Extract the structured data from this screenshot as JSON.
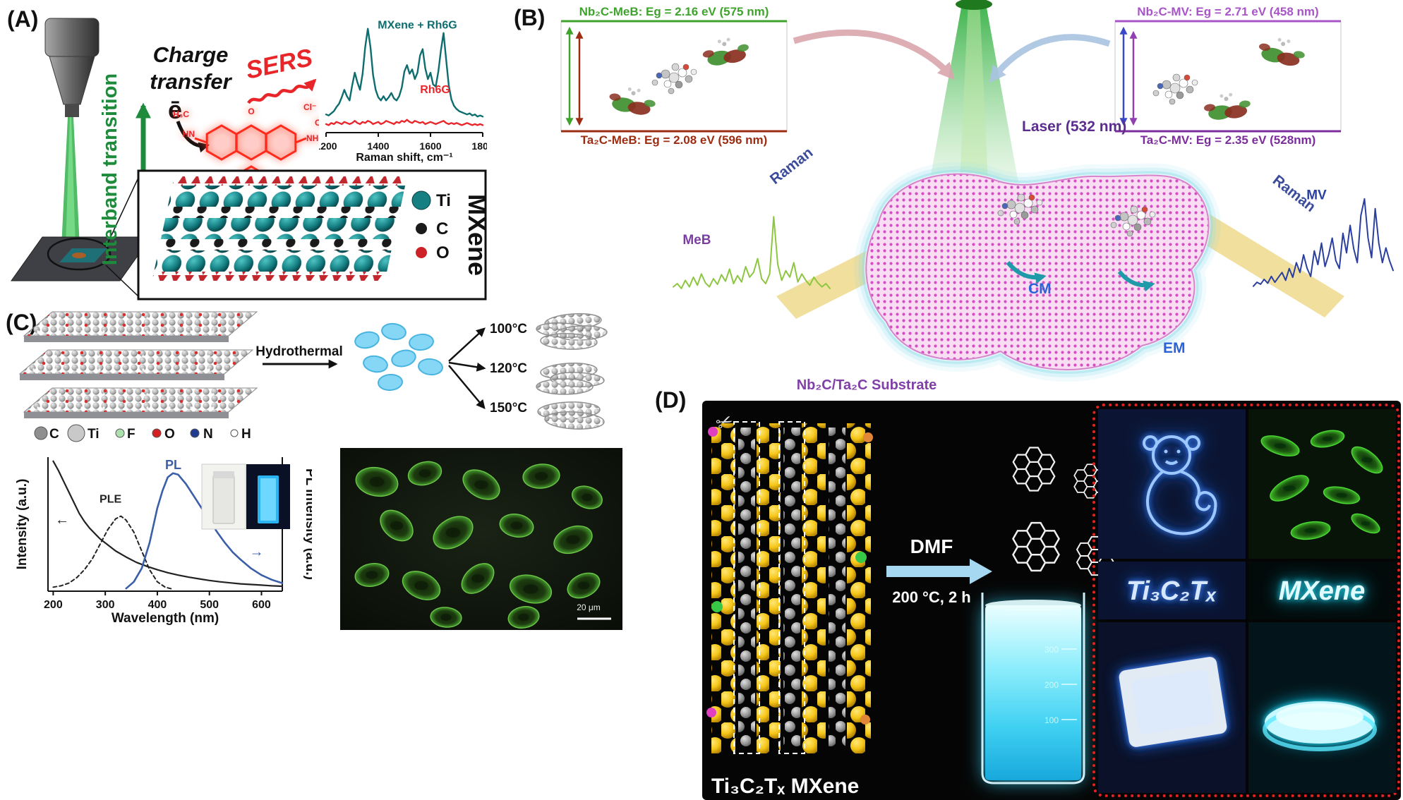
{
  "figure_title": "MXene SERS and photoluminescence multi-panel figure",
  "panels": {
    "a": {
      "label": "(A)",
      "interband": "Interband transition",
      "charge_line1": "Charge",
      "charge_line2": "transfer",
      "electron": "ē",
      "sers": "SERS",
      "molecule_labels": [
        "H₃C",
        "HN",
        "Cl⁻",
        "CH₃",
        "NH",
        "O",
        "CH₃"
      ],
      "lattice_legend": [
        {
          "label": "Ti",
          "color": "#157f82"
        },
        {
          "label": "C",
          "color": "#1a1a1a"
        },
        {
          "label": "O",
          "color": "#cc2127"
        }
      ],
      "mxene_vertical": "MXene"
    },
    "b": {
      "label": "(B)",
      "box_left": {
        "top": "Nb₂C-MeB: Eg = 2.16 eV (575 nm)",
        "top_color": "#3fa32e",
        "bottom": "Ta₂C-MeB: Eg = 2.08 eV (596 nm)",
        "bottom_color": "#9c2d12"
      },
      "box_right": {
        "top": "Nb₂C-MV: Eg = 2.71 eV (458 nm)",
        "top_color": "#a855c8",
        "bottom": "Ta₂C-MV: Eg = 2.35 eV (528nm)",
        "bottom_color": "#7b2d9b"
      },
      "laser": "Laser (532 nm)",
      "raman_left": "Raman",
      "raman_right": "Raman",
      "cm": "CM",
      "em": "EM",
      "substrate": "Nb₂C/Ta₂C Substrate"
    },
    "c": {
      "label": "(C)",
      "hydrothermal": "Hydrothermal",
      "temps": [
        "100°C",
        "120°C",
        "150°C"
      ],
      "atom_legend": [
        {
          "label": "C",
          "color": "#8f8f8f"
        },
        {
          "label": "Ti",
          "color": "#c9c9c9"
        },
        {
          "label": "F",
          "color": "#aee0ae"
        },
        {
          "label": "O",
          "color": "#d42020"
        },
        {
          "label": "N",
          "color": "#1f3a8f"
        },
        {
          "label": "H",
          "color": "#ffffff"
        }
      ],
      "scale_bar": "20 μm"
    },
    "d": {
      "label": "(D)",
      "scissors": "✂",
      "dmf": "DMF",
      "condition": "200 °C, 2 h",
      "mxene_formula": "Ti₃C₂Tₓ MXene",
      "beaker_marks": [
        "300",
        "200",
        "100"
      ],
      "glow_text_left": "Ti₃C₂Tₓ",
      "glow_text_right": "MXene"
    }
  },
  "chart_data": [
    {
      "id": "sers-raman",
      "type": "line",
      "title": "",
      "xlabel": "Raman shift, cm⁻¹",
      "ylabel": "",
      "xlim": [
        1200,
        1800
      ],
      "ylim": [
        0,
        1.08
      ],
      "xticks": [
        1200,
        1400,
        1600,
        1800
      ],
      "axes": [
        "bottom"
      ],
      "pad": {
        "l": 10,
        "r": 6,
        "t": 10,
        "b": 46
      },
      "tick_size": 14,
      "label_size": 16,
      "x_start": 1200,
      "x_step": 10,
      "series": [
        {
          "name": "MXene + Rh6G",
          "color": "#0e6d6e",
          "width": 2.4,
          "values": [
            0.17,
            0.16,
            0.18,
            0.2,
            0.24,
            0.27,
            0.33,
            0.4,
            0.34,
            0.3,
            0.44,
            0.56,
            0.47,
            0.4,
            0.55,
            0.8,
            0.97,
            0.8,
            0.54,
            0.4,
            0.33,
            0.3,
            0.34,
            0.3,
            0.33,
            0.37,
            0.32,
            0.3,
            0.34,
            0.42,
            0.57,
            0.63,
            0.55,
            0.59,
            0.5,
            0.56,
            0.72,
            0.78,
            0.6,
            0.5,
            0.56,
            0.45,
            0.43,
            0.57,
            0.77,
            0.93,
            0.68,
            0.44,
            0.31,
            0.25,
            0.22,
            0.2,
            0.19,
            0.18,
            0.17,
            0.18,
            0.16,
            0.17,
            0.15,
            0.16,
            0.15
          ]
        },
        {
          "name": "Rh6G",
          "color": "#e8262b",
          "width": 2.4,
          "values": [
            0.08,
            0.07,
            0.09,
            0.08,
            0.1,
            0.09,
            0.08,
            0.1,
            0.09,
            0.08,
            0.09,
            0.11,
            0.09,
            0.08,
            0.1,
            0.09,
            0.11,
            0.1,
            0.08,
            0.09,
            0.1,
            0.08,
            0.09,
            0.11,
            0.1,
            0.09,
            0.08,
            0.1,
            0.09,
            0.11,
            0.1,
            0.12,
            0.1,
            0.09,
            0.11,
            0.1,
            0.09,
            0.1,
            0.08,
            0.09,
            0.1,
            0.09,
            0.08,
            0.09,
            0.1,
            0.11,
            0.09,
            0.08,
            0.09,
            0.08,
            0.09,
            0.08,
            0.07,
            0.08,
            0.09,
            0.08,
            0.07,
            0.08,
            0.07,
            0.08,
            0.07
          ]
        }
      ],
      "annotations": [
        {
          "text": "MXene + Rh6G",
          "color": "#0e6d6e",
          "fx": 0.33,
          "fy": 0.1,
          "size": 16,
          "bold": true
        },
        {
          "text": "Rh6G",
          "color": "#e8262b",
          "fx": 0.6,
          "fy": 0.66,
          "size": 16,
          "bold": true
        }
      ]
    },
    {
      "id": "pl-spectra",
      "type": "line",
      "title": "",
      "xlabel": "Wavelength (nm)",
      "ylabel": "Intensity (a.u.)",
      "ylabel_right": "PL Intensity (a.u.)",
      "xlim": [
        190,
        640
      ],
      "ylim": [
        0,
        1.0
      ],
      "xticks": [
        200,
        300,
        400,
        500,
        600
      ],
      "axes": [
        "left",
        "bottom",
        "right"
      ],
      "pad": {
        "l": 46,
        "r": 42,
        "t": 8,
        "b": 50
      },
      "tick_size": 16,
      "label_size": 19,
      "series": [
        {
          "name": "Absorbance",
          "color": "#222222",
          "width": 2.2,
          "x": [
            200,
            210,
            220,
            230,
            240,
            250,
            260,
            270,
            280,
            290,
            300,
            320,
            340,
            360,
            380,
            400,
            420,
            440,
            460,
            480,
            500,
            520,
            540,
            560,
            580,
            600,
            620,
            640
          ],
          "values": [
            0.97,
            0.9,
            0.82,
            0.74,
            0.66,
            0.58,
            0.52,
            0.47,
            0.43,
            0.39,
            0.36,
            0.3,
            0.255,
            0.215,
            0.185,
            0.16,
            0.138,
            0.12,
            0.105,
            0.092,
            0.08,
            0.07,
            0.062,
            0.055,
            0.05,
            0.045,
            0.04,
            0.037
          ]
        },
        {
          "name": "PLE",
          "color": "#222222",
          "width": 2.0,
          "dash": "5 4",
          "x": [
            200,
            215,
            230,
            245,
            260,
            275,
            290,
            305,
            320,
            330,
            340,
            355,
            370,
            385,
            400,
            415,
            430
          ],
          "values": [
            0.03,
            0.04,
            0.06,
            0.1,
            0.16,
            0.24,
            0.35,
            0.46,
            0.54,
            0.56,
            0.53,
            0.44,
            0.3,
            0.16,
            0.07,
            0.03,
            0.015
          ]
        },
        {
          "name": "PL",
          "color": "#3a5fa8",
          "width": 2.6,
          "x": [
            340,
            355,
            370,
            385,
            400,
            410,
            420,
            430,
            440,
            455,
            470,
            485,
            500,
            515,
            530,
            545,
            560,
            580,
            600,
            620,
            640
          ],
          "values": [
            0.02,
            0.07,
            0.17,
            0.36,
            0.62,
            0.75,
            0.85,
            0.88,
            0.87,
            0.8,
            0.71,
            0.62,
            0.53,
            0.44,
            0.36,
            0.29,
            0.235,
            0.17,
            0.12,
            0.085,
            0.06
          ]
        }
      ],
      "annotations": [
        {
          "text": "PLE",
          "color": "#222222",
          "fx": 0.22,
          "fy": 0.34,
          "size": 16,
          "bold": true
        },
        {
          "text": "PL",
          "color": "#3a5fa8",
          "fx": 0.5,
          "fy": 0.09,
          "size": 18,
          "bold": true
        },
        {
          "text": "←",
          "color": "#222222",
          "fx": 0.03,
          "fy": 0.5,
          "size": 20,
          "bold": false
        },
        {
          "text": "→",
          "color": "#3a5fa8",
          "fx": 0.86,
          "fy": 0.74,
          "size": 20,
          "bold": false
        }
      ]
    },
    {
      "id": "meb-spectrum",
      "type": "line",
      "xlim": [
        0,
        1
      ],
      "ylim": [
        0,
        1.05
      ],
      "axes": [],
      "pad": {
        "l": 4,
        "r": 4,
        "t": 6,
        "b": 6
      },
      "series": [
        {
          "name": "MeB Raman spectrum",
          "color": "#8dc63f",
          "width": 2,
          "values": [
            0.1,
            0.14,
            0.08,
            0.18,
            0.1,
            0.22,
            0.12,
            0.26,
            0.15,
            0.1,
            0.2,
            0.13,
            0.25,
            0.17,
            0.32,
            0.14,
            0.24,
            0.16,
            0.35,
            0.22,
            0.28,
            0.45,
            0.2,
            0.14,
            0.26,
            0.97,
            0.38,
            0.18,
            0.3,
            0.22,
            0.4,
            0.16,
            0.26,
            0.18,
            0.12,
            0.22,
            0.15,
            0.1,
            0.14,
            0.08
          ]
        }
      ],
      "annotations": [
        {
          "text": "MeB",
          "color": "#7b3fa0",
          "fx": 0.06,
          "fy": 0.4,
          "size": 19,
          "bold": true
        }
      ]
    },
    {
      "id": "mv-spectrum",
      "type": "line",
      "xlim": [
        0,
        1
      ],
      "ylim": [
        0,
        1.05
      ],
      "axes": [],
      "pad": {
        "l": 4,
        "r": 4,
        "t": 6,
        "b": 6
      },
      "series": [
        {
          "name": "MV Raman spectrum",
          "color": "#2b3f9e",
          "width": 2,
          "values": [
            0.06,
            0.1,
            0.08,
            0.13,
            0.09,
            0.16,
            0.1,
            0.15,
            0.2,
            0.12,
            0.24,
            0.15,
            0.3,
            0.2,
            0.38,
            0.24,
            0.16,
            0.42,
            0.28,
            0.5,
            0.26,
            0.38,
            0.55,
            0.32,
            0.24,
            0.6,
            0.4,
            0.68,
            0.44,
            0.3,
            0.78,
            0.95,
            0.55,
            0.35,
            0.85,
            0.5,
            0.3,
            0.45,
            0.32,
            0.22
          ]
        }
      ],
      "annotations": [
        {
          "text": "MV",
          "color": "#2b3f9e",
          "fx": 0.38,
          "fy": 0.1,
          "size": 19,
          "bold": true
        }
      ]
    }
  ]
}
